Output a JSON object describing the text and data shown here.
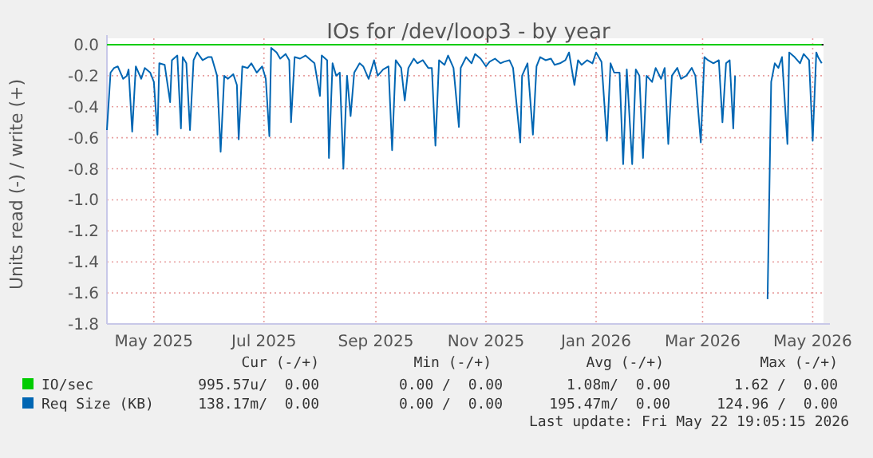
{
  "chart_data": {
    "type": "line",
    "title": "IOs for /dev/loop3 - by year",
    "ylabel": "Units read (-) / write (+)",
    "xlim": [
      "2025-04-20",
      "2026-05-22"
    ],
    "xticks": [
      {
        "value": "2025-05-16",
        "label": "May 2025"
      },
      {
        "value": "2025-07-16",
        "label": "Jul 2025"
      },
      {
        "value": "2025-09-16",
        "label": "Sep 2025"
      },
      {
        "value": "2025-11-16",
        "label": "Nov 2025"
      },
      {
        "value": "2026-01-16",
        "label": "Jan 2026"
      },
      {
        "value": "2026-03-16",
        "label": "Mar 2026"
      },
      {
        "value": "2026-05-16",
        "label": "May 2026"
      }
    ],
    "ylim": [
      -1.8,
      0
    ],
    "yticks": [
      {
        "value": 0,
        "label": "0.0"
      },
      -0.2,
      -0.4,
      -0.6,
      -0.8,
      {
        "value": -1,
        "label": "-1.0"
      },
      -1.2,
      -1.4,
      -1.6,
      -1.8
    ],
    "grid": true,
    "legend": "bottom",
    "marker": "none",
    "line_style": "solid",
    "ref_lines": [
      {
        "axis": "y",
        "value": 0,
        "color": "#000000"
      }
    ],
    "annotations": [
      "Cur (-/+)",
      "Min (-/+)",
      "Avg (-/+)",
      "Max (-/+)",
      "995.57u/  0.00",
      "0.00 /  0.00",
      "1.08m/  0.00",
      "1.62 /  0.00",
      "138.17m/  0.00",
      "0.00 /  0.00",
      "195.47m/  0.00",
      "124.96 /  0.00",
      "Last update: Fri May 22 19:05:15 2026"
    ],
    "series": [
      {
        "name": "IO/sec",
        "color": "#00cc00",
        "x": [
          "2025-04-20",
          "2026-05-21"
        ],
        "values": [
          0,
          0
        ]
      },
      {
        "name": "Req Size (KB)",
        "color": "#0066b3",
        "x": [
          "2025-04-20",
          "2025-04-22",
          "2025-04-24",
          "2025-04-26",
          "2025-04-29",
          "2025-05-01",
          "2025-05-02",
          "2025-05-04",
          "2025-05-06",
          "2025-05-09",
          "2025-05-11",
          "2025-05-14",
          "2025-05-16",
          "2025-05-18",
          "2025-05-19",
          "2025-05-22",
          "2025-05-25",
          "2025-05-26",
          "2025-05-29",
          "2025-05-31",
          "2025-06-01",
          "2025-06-03",
          "2025-06-05",
          "2025-06-07",
          "2025-06-09",
          "2025-06-12",
          "2025-06-15",
          "2025-06-17",
          "2025-06-20",
          "2025-06-22",
          "2025-06-24",
          "2025-06-26",
          "2025-06-29",
          "2025-07-01",
          "2025-07-02",
          "2025-07-04",
          "2025-07-07",
          "2025-07-09",
          "2025-07-12",
          "2025-07-15",
          "2025-07-17",
          "2025-07-19",
          "2025-07-20",
          "2025-07-23",
          "2025-07-25",
          "2025-07-28",
          "2025-07-30",
          "2025-07-31",
          "2025-08-02",
          "2025-08-05",
          "2025-08-08",
          "2025-08-10",
          "2025-08-13",
          "2025-08-16",
          "2025-08-17",
          "2025-08-20",
          "2025-08-21",
          "2025-08-23",
          "2025-08-25",
          "2025-08-27",
          "2025-08-29",
          "2025-08-31",
          "2025-09-02",
          "2025-09-04",
          "2025-09-07",
          "2025-09-09",
          "2025-09-12",
          "2025-09-15",
          "2025-09-17",
          "2025-09-20",
          "2025-09-23",
          "2025-09-25",
          "2025-09-27",
          "2025-09-30",
          "2025-10-02",
          "2025-10-04",
          "2025-10-07",
          "2025-10-09",
          "2025-10-12",
          "2025-10-15",
          "2025-10-17",
          "2025-10-19",
          "2025-10-21",
          "2025-10-24",
          "2025-10-26",
          "2025-10-29",
          "2025-11-01",
          "2025-11-02",
          "2025-11-05",
          "2025-11-08",
          "2025-11-10",
          "2025-11-13",
          "2025-11-16",
          "2025-11-18",
          "2025-11-21",
          "2025-11-24",
          "2025-11-26",
          "2025-11-29",
          "2025-12-01",
          "2025-12-05",
          "2025-12-06",
          "2025-12-09",
          "2025-12-12",
          "2025-12-14",
          "2025-12-16",
          "2025-12-19",
          "2025-12-22",
          "2025-12-24",
          "2025-12-27",
          "2025-12-30",
          "2026-01-01",
          "2026-01-04",
          "2026-01-06",
          "2026-01-08",
          "2026-01-11",
          "2026-01-14",
          "2026-01-16",
          "2026-01-19",
          "2026-01-22",
          "2026-01-24",
          "2026-01-26",
          "2026-01-29",
          "2026-01-31",
          "2026-02-02",
          "2026-02-05",
          "2026-02-07",
          "2026-02-09",
          "2026-02-11",
          "2026-02-13",
          "2026-02-16",
          "2026-02-18",
          "2026-02-21",
          "2026-02-23",
          "2026-02-25",
          "2026-02-27",
          "2026-03-02",
          "2026-03-04",
          "2026-03-07",
          "2026-03-10",
          "2026-03-12",
          "2026-03-15",
          "2026-03-17",
          "2026-03-19",
          "2026-03-22",
          "2026-03-25",
          "2026-03-27",
          "2026-03-29",
          "2026-03-31",
          "2026-04-02",
          "2026-04-03",
          "2026-04-04",
          "2026-04-21",
          "2026-04-23",
          "2026-04-25",
          "2026-04-27",
          "2026-04-29",
          "2026-05-02",
          "2026-05-03",
          "2026-05-06",
          "2026-05-09",
          "2026-05-11",
          "2026-05-14",
          "2026-05-16",
          "2026-05-18",
          "2026-05-19",
          "2026-05-21"
        ],
        "values": [
          -0.55,
          -0.18,
          -0.15,
          -0.14,
          -0.22,
          -0.2,
          -0.16,
          -0.56,
          -0.14,
          -0.22,
          -0.15,
          -0.18,
          -0.24,
          -0.58,
          -0.12,
          -0.13,
          -0.37,
          -0.1,
          -0.07,
          -0.54,
          -0.08,
          -0.12,
          -0.55,
          -0.1,
          -0.05,
          -0.1,
          -0.08,
          -0.08,
          -0.2,
          -0.69,
          -0.2,
          -0.22,
          -0.19,
          -0.26,
          -0.61,
          -0.14,
          -0.15,
          -0.12,
          -0.18,
          -0.14,
          -0.22,
          -0.59,
          -0.02,
          -0.05,
          -0.09,
          -0.06,
          -0.1,
          -0.5,
          -0.08,
          -0.09,
          -0.07,
          -0.09,
          -0.12,
          -0.33,
          -0.07,
          -0.1,
          -0.73,
          -0.12,
          -0.2,
          -0.18,
          -0.8,
          -0.2,
          -0.46,
          -0.18,
          -0.12,
          -0.14,
          -0.22,
          -0.1,
          -0.2,
          -0.16,
          -0.14,
          -0.68,
          -0.1,
          -0.15,
          -0.36,
          -0.15,
          -0.09,
          -0.12,
          -0.1,
          -0.15,
          -0.15,
          -0.65,
          -0.1,
          -0.13,
          -0.07,
          -0.15,
          -0.53,
          -0.15,
          -0.08,
          -0.12,
          -0.06,
          -0.09,
          -0.14,
          -0.11,
          -0.09,
          -0.12,
          -0.11,
          -0.1,
          -0.15,
          -0.63,
          -0.2,
          -0.12,
          -0.58,
          -0.14,
          -0.08,
          -0.1,
          -0.09,
          -0.13,
          -0.12,
          -0.1,
          -0.05,
          -0.26,
          -0.1,
          -0.13,
          -0.1,
          -0.12,
          -0.05,
          -0.11,
          -0.62,
          -0.12,
          -0.18,
          -0.18,
          -0.77,
          -0.16,
          -0.77,
          -0.16,
          -0.2,
          -0.73,
          -0.2,
          -0.24,
          -0.15,
          -0.22,
          -0.15,
          -0.64,
          -0.2,
          -0.15,
          -0.22,
          -0.2,
          -0.15,
          -0.2,
          -0.63,
          -0.08,
          -0.1,
          -0.12,
          -0.1,
          -0.5,
          -0.12,
          -0.1,
          -0.54,
          -0.2,
          null,
          -1.64,
          -0.24,
          -0.12,
          -0.15,
          -0.08,
          -0.64,
          -0.05,
          -0.08,
          -0.12,
          -0.06,
          -0.1,
          -0.62,
          -0.05,
          -0.08,
          -0.12
        ]
      }
    ]
  }
}
